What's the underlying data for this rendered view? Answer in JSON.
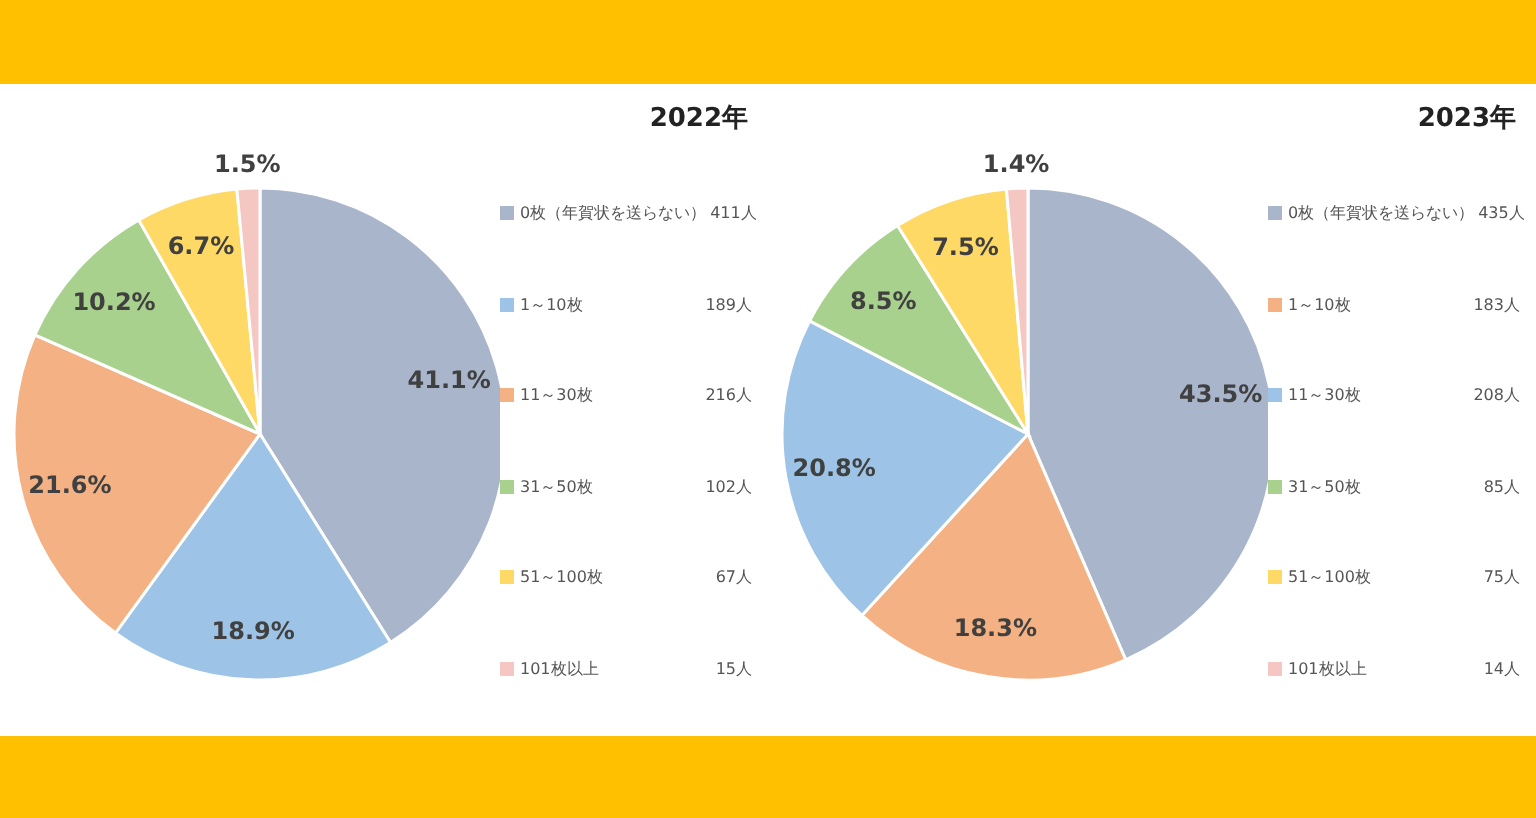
{
  "chart_data": [
    {
      "type": "pie",
      "title": "2022年",
      "categories": [
        "0枚（年賀状を送らない） 411人",
        "1～10枚 189人",
        "11～30枚 216人",
        "31～50枚 102人",
        "51～100枚 67人",
        "101枚以上 15人"
      ],
      "values": [
        41.1,
        18.9,
        21.6,
        10.2,
        6.7,
        1.5
      ],
      "value_labels": [
        "41.1%",
        "18.9%",
        "21.6%",
        "10.2%",
        "6.7%",
        "1.5%"
      ],
      "colors": [
        "#a8b5cb",
        "#9dc3e6",
        "#f4b183",
        "#a9d18e",
        "#ffd966",
        "#f4c7c3"
      ],
      "legend": "right"
    },
    {
      "type": "pie",
      "title": "2023年",
      "categories": [
        "0枚（年賀状を送らない） 435人",
        "1～10枚 183人",
        "11～30枚 208人",
        "31～50枚 85人",
        "51～100枚 75人",
        "101枚以上 14人"
      ],
      "values": [
        43.5,
        18.3,
        20.8,
        8.5,
        7.5,
        1.4
      ],
      "value_labels": [
        "43.5%",
        "18.3%",
        "20.8%",
        "8.5%",
        "7.5%",
        "1.4%"
      ],
      "colors": [
        "#a8b5cb",
        "#f4b183",
        "#9dc3e6",
        "#a9d18e",
        "#ffd966",
        "#f4c7c3"
      ],
      "legend": "right"
    }
  ]
}
